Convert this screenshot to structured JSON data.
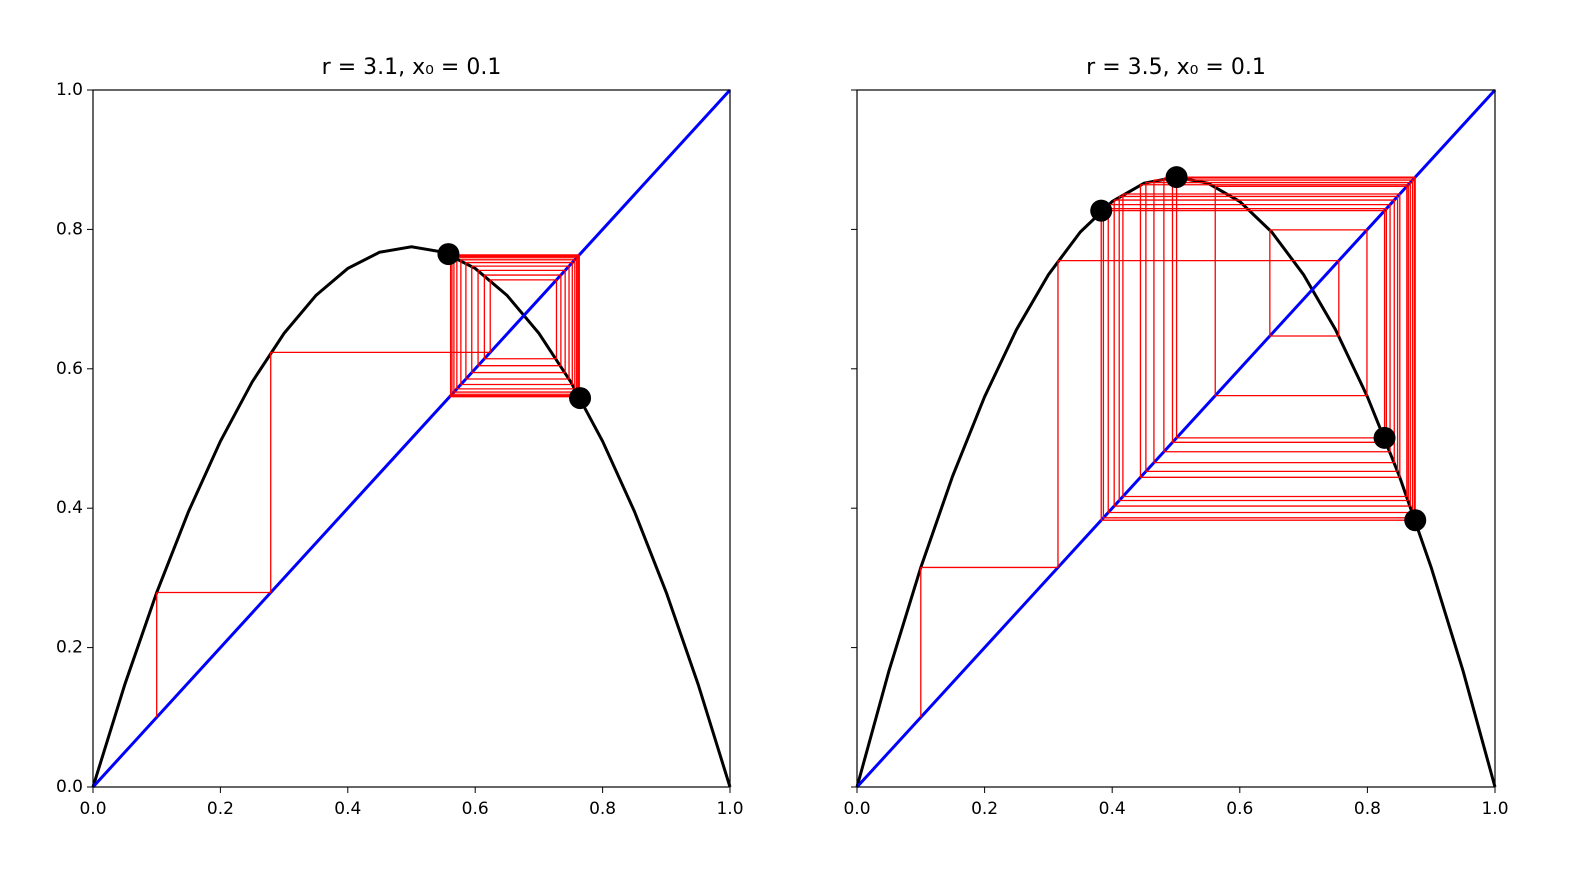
{
  "chart_data": [
    {
      "type": "cobweb",
      "title": "r = 3.1, x₀ = 0.1",
      "xlim": [
        0,
        1
      ],
      "ylim": [
        0,
        1
      ],
      "xticks": [
        {
          "value": 0,
          "label": "0.0"
        },
        0.2,
        0.4,
        0.6,
        0.8,
        {
          "value": 1,
          "label": "1.0"
        }
      ],
      "yticks": [
        {
          "value": 0,
          "label": "0.0"
        },
        0.2,
        0.4,
        0.6,
        0.8,
        {
          "value": 1,
          "label": "1.0"
        }
      ],
      "show_ytick_labels": true,
      "curve": {
        "color": "#000000",
        "x": [
          0,
          0.05,
          0.1,
          0.15,
          0.2,
          0.25,
          0.3,
          0.35,
          0.4,
          0.45,
          0.5,
          0.55,
          0.6,
          0.65,
          0.7,
          0.75,
          0.8,
          0.85,
          0.9,
          0.95,
          1
        ],
        "y": [
          0,
          0.1473,
          0.279,
          0.3953,
          0.496,
          0.5813,
          0.651,
          0.7053,
          0.744,
          0.7673,
          0.775,
          0.7673,
          0.744,
          0.7053,
          0.651,
          0.5813,
          0.496,
          0.3953,
          0.279,
          0.1473,
          0
        ]
      },
      "diagonal": {
        "color": "#0000ff",
        "x": [
          0,
          1
        ],
        "y": [
          0,
          1
        ]
      },
      "cobweb": {
        "color": "#ff0000",
        "iterates": [
          0.1,
          0.279,
          0.6236,
          0.7276,
          0.6144,
          0.7345,
          0.6045,
          0.7412,
          0.5946,
          0.7473,
          0.5854,
          0.7524,
          0.5775,
          0.7564,
          0.5712,
          0.7593,
          0.5666,
          0.7612,
          0.5635,
          0.7625,
          0.5614,
          0.7634,
          0.56
        ]
      },
      "points": {
        "color": "#000000",
        "x": [
          0.558,
          0.7646
        ],
        "y": [
          0.7646,
          0.558
        ]
      }
    },
    {
      "type": "cobweb",
      "title": "r = 3.5, x₀ = 0.1",
      "xlim": [
        0,
        1
      ],
      "ylim": [
        0,
        1
      ],
      "xticks": [
        {
          "value": 0,
          "label": "0.0"
        },
        0.2,
        0.4,
        0.6,
        0.8,
        {
          "value": 1,
          "label": "1.0"
        }
      ],
      "yticks": [
        0,
        0.2,
        0.4,
        0.6,
        0.8,
        1
      ],
      "show_ytick_labels": false,
      "curve": {
        "color": "#000000",
        "x": [
          0,
          0.05,
          0.1,
          0.15,
          0.2,
          0.25,
          0.3,
          0.35,
          0.4,
          0.45,
          0.5,
          0.55,
          0.6,
          0.65,
          0.7,
          0.75,
          0.8,
          0.85,
          0.9,
          0.95,
          1
        ],
        "y": [
          0,
          0.1663,
          0.315,
          0.4463,
          0.56,
          0.6563,
          0.735,
          0.7963,
          0.84,
          0.8663,
          0.875,
          0.8663,
          0.84,
          0.7963,
          0.735,
          0.6563,
          0.56,
          0.4463,
          0.315,
          0.1663,
          0
        ]
      },
      "diagonal": {
        "color": "#0000ff",
        "x": [
          0,
          1
        ],
        "y": [
          0,
          1
        ]
      },
      "cobweb": {
        "color": "#ff0000",
        "iterates": [
          0.1,
          0.315,
          0.7552,
          0.6471,
          0.7993,
          0.5615,
          0.8618,
          0.4168,
          0.8508,
          0.4443,
          0.8641,
          0.411,
          0.8473,
          0.4528,
          0.8672,
          0.4031,
          0.8421,
          0.4654,
          0.8708,
          0.3938,
          0.8355,
          0.481,
          0.8737,
          0.3862,
          0.8297,
          0.4945,
          0.8749,
          0.3828,
          0.8269,
          0.5009,
          0.875
        ]
      },
      "points": {
        "color": "#000000",
        "x": [
          0.3828,
          0.8269,
          0.5009,
          0.875
        ],
        "y": [
          0.8269,
          0.5009,
          0.875,
          0.3828
        ]
      }
    }
  ]
}
